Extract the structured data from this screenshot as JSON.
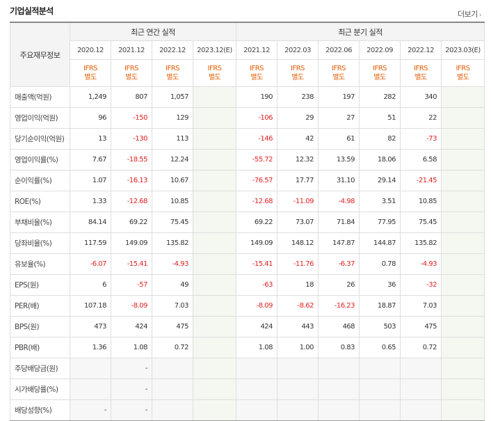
{
  "header": {
    "title": "기업실적분석",
    "more_label": "더보기"
  },
  "table": {
    "corner_label": "주요재무정보",
    "group_annual": "최근 연간 실적",
    "group_quarter": "최근 분기 실적",
    "periods": [
      "2020.12",
      "2021.12",
      "2022.12",
      "2023.12(E)",
      "2021.12",
      "2022.03",
      "2022.06",
      "2022.09",
      "2022.12",
      "2023.03(E)"
    ],
    "ifrs": [
      "IFRS\n별도",
      "IFRS\n별도",
      "IFRS\n별도",
      "IFRS\n별도",
      "IFRS\n별도",
      "IFRS\n별도",
      "IFRS\n별도",
      "IFRS\n별도",
      "IFRS\n별도",
      "IFRS\n별도"
    ],
    "rows": [
      {
        "label": "매출액(억원)",
        "values": [
          "1,249",
          "807",
          "1,057",
          "",
          "190",
          "238",
          "197",
          "282",
          "340",
          ""
        ]
      },
      {
        "label": "영업이익(억원)",
        "values": [
          "96",
          "-150",
          "129",
          "",
          "-106",
          "29",
          "27",
          "51",
          "22",
          ""
        ]
      },
      {
        "label": "당기순이익(억원)",
        "values": [
          "13",
          "-130",
          "113",
          "",
          "-146",
          "42",
          "61",
          "82",
          "-73",
          ""
        ]
      },
      {
        "label": "영업이익률(%)",
        "values": [
          "7.67",
          "-18.55",
          "12.24",
          "",
          "-55.72",
          "12.32",
          "13.59",
          "18.06",
          "6.58",
          ""
        ]
      },
      {
        "label": "순이익률(%)",
        "values": [
          "1.07",
          "-16.13",
          "10.67",
          "",
          "-76.57",
          "17.77",
          "31.10",
          "29.14",
          "-21.45",
          ""
        ]
      },
      {
        "label": "ROE(%)",
        "values": [
          "1.33",
          "-12.68",
          "10.85",
          "",
          "-12.68",
          "-11.09",
          "-4.98",
          "3.51",
          "10.85",
          ""
        ]
      },
      {
        "label": "부채비율(%)",
        "values": [
          "84.14",
          "69.22",
          "75.45",
          "",
          "69.22",
          "73.07",
          "71.84",
          "77.95",
          "75.45",
          ""
        ]
      },
      {
        "label": "당좌비율(%)",
        "values": [
          "117.59",
          "149.09",
          "135.82",
          "",
          "149.09",
          "148.12",
          "147.87",
          "144.87",
          "135.82",
          ""
        ]
      },
      {
        "label": "유보율(%)",
        "values": [
          "-6.07",
          "-15.41",
          "-4.93",
          "",
          "-15.41",
          "-11.76",
          "-6.37",
          "0.78",
          "-4.93",
          ""
        ]
      },
      {
        "label": "EPS(원)",
        "values": [
          "6",
          "-57",
          "49",
          "",
          "-63",
          "18",
          "26",
          "36",
          "-32",
          ""
        ]
      },
      {
        "label": "PER(배)",
        "values": [
          "107.18",
          "-8.09",
          "7.03",
          "",
          "-8.09",
          "-8.62",
          "-16.23",
          "18.87",
          "7.03",
          ""
        ]
      },
      {
        "label": "BPS(원)",
        "values": [
          "473",
          "424",
          "475",
          "",
          "424",
          "443",
          "468",
          "503",
          "475",
          ""
        ]
      },
      {
        "label": "PBR(배)",
        "values": [
          "1.36",
          "1.08",
          "0.72",
          "",
          "1.08",
          "1.00",
          "0.83",
          "0.65",
          "0.72",
          ""
        ]
      },
      {
        "label": "주당배당금(원)",
        "values": [
          "",
          "-",
          "",
          "",
          "",
          "",
          "",
          "",
          "",
          ""
        ]
      },
      {
        "label": "시가배당률(%)",
        "values": [
          "",
          "-",
          "",
          "",
          "",
          "",
          "",
          "",
          "",
          ""
        ]
      },
      {
        "label": "배당성향(%)",
        "values": [
          "-",
          "-",
          "",
          "",
          "",
          "",
          "",
          "",
          "",
          ""
        ]
      }
    ]
  },
  "colors": {
    "accent": "#e65a00",
    "negative": "#e02020",
    "estimate_bg": "#f4f8f1"
  }
}
